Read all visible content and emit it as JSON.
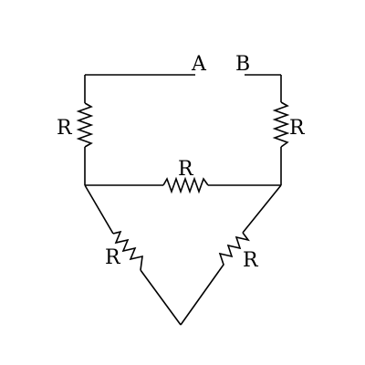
{
  "terminals": {
    "a": "A",
    "b": "B"
  },
  "resistors": {
    "left": "R",
    "right": "R",
    "middle": "R",
    "lower_left": "R",
    "lower_right": "R"
  },
  "colors": {
    "ink": "#000000",
    "background": "#ffffff"
  }
}
